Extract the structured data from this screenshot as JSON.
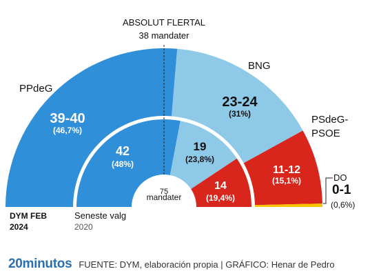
{
  "chart_data": {
    "type": "semicircle-parliament",
    "majority": {
      "title": "ABSOLUT FLERTAL",
      "subtitle": "38 mandater"
    },
    "total_seats": {
      "number": "75",
      "label": "mandater"
    },
    "poll": {
      "name": "DYM FEB",
      "year": "2024",
      "segments": [
        {
          "party": "PPdeG",
          "seats": 39.5,
          "seats_label": "39-40",
          "pct_label": "(46,7%)",
          "color": "#2f8fd8"
        },
        {
          "party": "BNG",
          "seats": 23.5,
          "seats_label": "23-24",
          "pct_label": "(31%)",
          "color": "#8ecae8"
        },
        {
          "party": "PSdeG-PSOE",
          "party_lines": [
            "PSdeG-",
            "PSOE"
          ],
          "seats": 11.5,
          "seats_label": "11-12",
          "pct_label": "(15,1%)",
          "color": "#d9261c"
        },
        {
          "party": "DO",
          "seats": 0.5,
          "seats_label": "0-1",
          "pct_label": "(0,6%)",
          "color": "#f6c400"
        }
      ]
    },
    "previous": {
      "name": "Seneste valg",
      "year": "2020",
      "segments": [
        {
          "party": "PPdeG",
          "seats": 42,
          "seats_label": "42",
          "pct_label": "(48%)",
          "color": "#2f8fd8"
        },
        {
          "party": "BNG",
          "seats": 19,
          "seats_label": "19",
          "pct_label": "(23,8%)",
          "color": "#8ecae8"
        },
        {
          "party": "PSdeG-PSOE",
          "seats": 14,
          "seats_label": "14",
          "pct_label": "(19,4%)",
          "color": "#d9261c"
        }
      ]
    }
  },
  "footer": {
    "brand_prefix": "20",
    "brand_suffix": "minutos",
    "source": "FUENTE: DYM, elaboración propia  |  GRÁFICO: Henar de Pedro"
  }
}
